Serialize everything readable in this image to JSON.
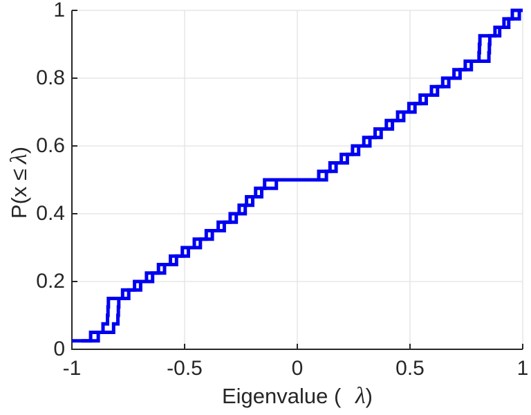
{
  "chart_data": {
    "type": "line",
    "subtype": "empirical-cdf-stairs",
    "title": "",
    "xlabel": "Eigenvalue ( λ)",
    "ylabel": "P(x ≤ λ)",
    "xlabel_parts": {
      "prefix": "Eigenvalue ( ",
      "lambda": "λ",
      "suffix": ")"
    },
    "ylabel_parts": {
      "prefix": "P(x ≤",
      "lambda": "λ",
      "suffix": ")"
    },
    "xlim": [
      -1,
      1
    ],
    "ylim": [
      0,
      1
    ],
    "x_ticks": [
      -1,
      -0.5,
      0,
      0.5,
      1
    ],
    "x_tick_labels": [
      "-1",
      "-0.5",
      "0",
      "0.5",
      "1"
    ],
    "y_ticks": [
      0,
      0.2,
      0.4,
      0.6,
      0.8,
      1
    ],
    "y_tick_labels": [
      "0",
      "0.2",
      "0.4",
      "0.6",
      "0.8",
      "1"
    ],
    "grid": true,
    "legend": null,
    "n_per_series": 40,
    "cdf_step": 0.025,
    "plateau_level": 0.5,
    "series": [
      {
        "name": "eigenvalue-cdf-1",
        "eigenvalues": [
          -1.0,
          -0.917,
          -0.862,
          -0.842,
          -0.84,
          -0.838,
          -0.775,
          -0.722,
          -0.669,
          -0.616,
          -0.563,
          -0.51,
          -0.457,
          -0.404,
          -0.351,
          -0.298,
          -0.258,
          -0.225,
          -0.185,
          -0.145,
          0.095,
          0.145,
          0.195,
          0.245,
          0.295,
          0.345,
          0.395,
          0.445,
          0.495,
          0.545,
          0.595,
          0.645,
          0.695,
          0.745,
          0.806,
          0.808,
          0.81,
          0.877,
          0.917,
          0.954
        ]
      },
      {
        "name": "eigenvalue-cdf-2",
        "eigenvalues": [
          -0.957,
          -0.883,
          -0.815,
          -0.796,
          -0.794,
          -0.792,
          -0.748,
          -0.695,
          -0.642,
          -0.589,
          -0.536,
          -0.483,
          -0.43,
          -0.377,
          -0.324,
          -0.271,
          -0.231,
          -0.198,
          -0.158,
          -0.093,
          0.129,
          0.172,
          0.222,
          0.272,
          0.322,
          0.372,
          0.422,
          0.472,
          0.522,
          0.572,
          0.622,
          0.672,
          0.722,
          0.772,
          0.85,
          0.852,
          0.854,
          0.898,
          0.938,
          0.985
        ]
      }
    ],
    "colors": {
      "line": "#0000f0",
      "axis": "#262626",
      "grid": "#e2e2e2",
      "tick_label": "#262626",
      "background": "#ffffff"
    }
  }
}
